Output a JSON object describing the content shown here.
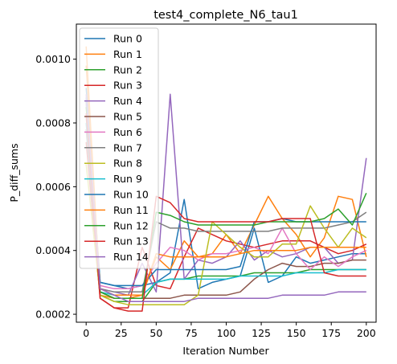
{
  "chart_data": {
    "type": "line",
    "title": "test4_complete_N6_tau1",
    "xlabel": "Iteration Number",
    "ylabel": "P_diff_sums",
    "xlim": [
      -7,
      207
    ],
    "ylim": [
      0.000175,
      0.00111
    ],
    "x_ticks": [
      0,
      25,
      50,
      75,
      100,
      125,
      150,
      175,
      200
    ],
    "y_ticks": [
      0.0002,
      0.0004,
      0.0006,
      0.0008,
      0.001
    ],
    "y_tick_labels": [
      "0.0002",
      "0.0004",
      "0.0006",
      "0.0008",
      "0.0010"
    ],
    "legend_position": "upper-left",
    "grid": false,
    "x": [
      0,
      10,
      20,
      30,
      40,
      50,
      60,
      70,
      80,
      90,
      100,
      110,
      120,
      130,
      140,
      150,
      160,
      170,
      180,
      190,
      200
    ],
    "series": [
      {
        "name": "Run 0",
        "color": "#1f77b4",
        "values": [
          0.00091,
          0.0003,
          0.00029,
          0.00028,
          0.00029,
          0.0003,
          0.00033,
          0.00056,
          0.00028,
          0.0003,
          0.00031,
          0.00032,
          0.00047,
          0.0003,
          0.00032,
          0.00038,
          0.00036,
          0.00037,
          0.00038,
          0.00039,
          0.00039
        ]
      },
      {
        "name": "Run 1",
        "color": "#ff7f0e",
        "values": [
          0.00104,
          0.00026,
          0.00025,
          0.00025,
          0.00026,
          0.00038,
          0.00034,
          0.00043,
          0.00038,
          0.00039,
          0.00045,
          0.00039,
          0.00048,
          0.00057,
          0.0005,
          0.00045,
          0.00038,
          0.00044,
          0.00057,
          0.00056,
          0.00038
        ]
      },
      {
        "name": "Run 2",
        "color": "#2ca02c",
        "values": [
          0.00087,
          0.00026,
          0.00024,
          0.00024,
          0.00024,
          0.0003,
          0.00031,
          0.00031,
          0.00032,
          0.00032,
          0.00032,
          0.00032,
          0.00033,
          0.00033,
          0.00033,
          0.00033,
          0.00034,
          0.00034,
          0.00034,
          0.00034,
          0.00034
        ]
      },
      {
        "name": "Run 3",
        "color": "#d62728",
        "values": [
          0.00074,
          0.00025,
          0.00022,
          0.00022,
          0.00041,
          0.00029,
          0.00028,
          0.00038,
          0.00047,
          0.00045,
          0.00043,
          0.00042,
          0.00041,
          0.00042,
          0.00043,
          0.00043,
          0.00043,
          0.00041,
          0.00039,
          0.0004,
          0.00042
        ]
      },
      {
        "name": "Run 4",
        "color": "#9467bd",
        "values": [
          0.00086,
          0.00028,
          0.00027,
          0.00026,
          0.00036,
          0.00027,
          0.00089,
          0.00031,
          0.00037,
          0.00036,
          0.00038,
          0.00043,
          0.00037,
          0.0004,
          0.00038,
          0.00039,
          0.00041,
          0.00041,
          0.00036,
          0.00037,
          0.00069
        ]
      },
      {
        "name": "Run 5",
        "color": "#8c564b",
        "values": [
          0.00078,
          0.00027,
          0.00025,
          0.00025,
          0.00025,
          0.00025,
          0.00025,
          0.00026,
          0.00026,
          0.00026,
          0.00026,
          0.00027,
          0.00031,
          0.00034,
          0.00036,
          0.00035,
          0.00035,
          0.00036,
          0.00036,
          0.00037,
          0.00037
        ]
      },
      {
        "name": "Run 6",
        "color": "#e377c2",
        "values": [
          0.0008,
          0.00029,
          0.00028,
          0.00028,
          0.00029,
          0.00036,
          0.00041,
          0.0004,
          0.00037,
          0.00039,
          0.00039,
          0.0004,
          0.00041,
          0.00039,
          0.00047,
          0.00039,
          0.00034,
          0.00038,
          0.00035,
          0.00038,
          0.0004
        ]
      },
      {
        "name": "Run 7",
        "color": "#7f7f7f",
        "values": [
          0.00082,
          0.00028,
          0.00027,
          0.00027,
          0.00027,
          0.00049,
          0.00047,
          0.00047,
          0.00046,
          0.00046,
          0.00046,
          0.00046,
          0.00046,
          0.00046,
          0.00047,
          0.00047,
          0.00047,
          0.00047,
          0.00048,
          0.00049,
          0.00052
        ]
      },
      {
        "name": "Run 8",
        "color": "#bcbd22",
        "values": [
          0.00067,
          0.00026,
          0.00024,
          0.00023,
          0.00023,
          0.00023,
          0.00023,
          0.00023,
          0.00026,
          0.00049,
          0.00045,
          0.00041,
          0.00038,
          0.00038,
          0.00042,
          0.00042,
          0.00054,
          0.00047,
          0.00041,
          0.00047,
          0.00044
        ]
      },
      {
        "name": "Run 9",
        "color": "#17becf",
        "values": [
          0.0008,
          0.00027,
          0.00026,
          0.00026,
          0.00026,
          0.0003,
          0.00031,
          0.00031,
          0.00031,
          0.00031,
          0.00031,
          0.00032,
          0.00032,
          0.00032,
          0.00032,
          0.00033,
          0.00033,
          0.00033,
          0.00034,
          0.00034,
          0.00034
        ]
      },
      {
        "name": "Run 10",
        "color": "#1f77b4",
        "values": [
          0.00088,
          0.0003,
          0.00029,
          0.00029,
          0.00029,
          0.00034,
          0.00034,
          0.00034,
          0.00034,
          0.00034,
          0.00034,
          0.00035,
          0.00049,
          0.00049,
          0.0005,
          0.00049,
          0.00049,
          0.00049,
          0.00049,
          0.00049,
          0.00049
        ]
      },
      {
        "name": "Run 11",
        "color": "#ff7f0e",
        "values": [
          0.00098,
          0.00028,
          0.00026,
          0.00026,
          0.00026,
          0.00039,
          0.00038,
          0.00038,
          0.00038,
          0.00038,
          0.00038,
          0.00039,
          0.0004,
          0.0004,
          0.0004,
          0.0004,
          0.00041,
          0.00041,
          0.00041,
          0.00041,
          0.00041
        ]
      },
      {
        "name": "Run 12",
        "color": "#2ca02c",
        "values": [
          0.00085,
          0.00027,
          0.00025,
          0.00025,
          0.00025,
          0.00052,
          0.00051,
          0.00049,
          0.00048,
          0.00048,
          0.00048,
          0.00048,
          0.00048,
          0.00049,
          0.00049,
          0.00049,
          0.00049,
          0.0005,
          0.00053,
          0.00048,
          0.00058
        ]
      },
      {
        "name": "Run 13",
        "color": "#d62728",
        "values": [
          0.00083,
          0.00025,
          0.00022,
          0.00021,
          0.00021,
          0.00057,
          0.00055,
          0.0005,
          0.00049,
          0.00049,
          0.00049,
          0.00049,
          0.00049,
          0.00049,
          0.0005,
          0.0005,
          0.0005,
          0.00033,
          0.00032,
          0.00032,
          0.00032
        ]
      },
      {
        "name": "Run 14",
        "color": "#9467bd",
        "values": [
          0.00089,
          0.00028,
          0.00026,
          0.00024,
          0.00024,
          0.00024,
          0.00024,
          0.00024,
          0.00025,
          0.00025,
          0.00025,
          0.00025,
          0.00025,
          0.00025,
          0.00026,
          0.00026,
          0.00026,
          0.00026,
          0.00027,
          0.00027,
          0.00027
        ]
      }
    ]
  }
}
